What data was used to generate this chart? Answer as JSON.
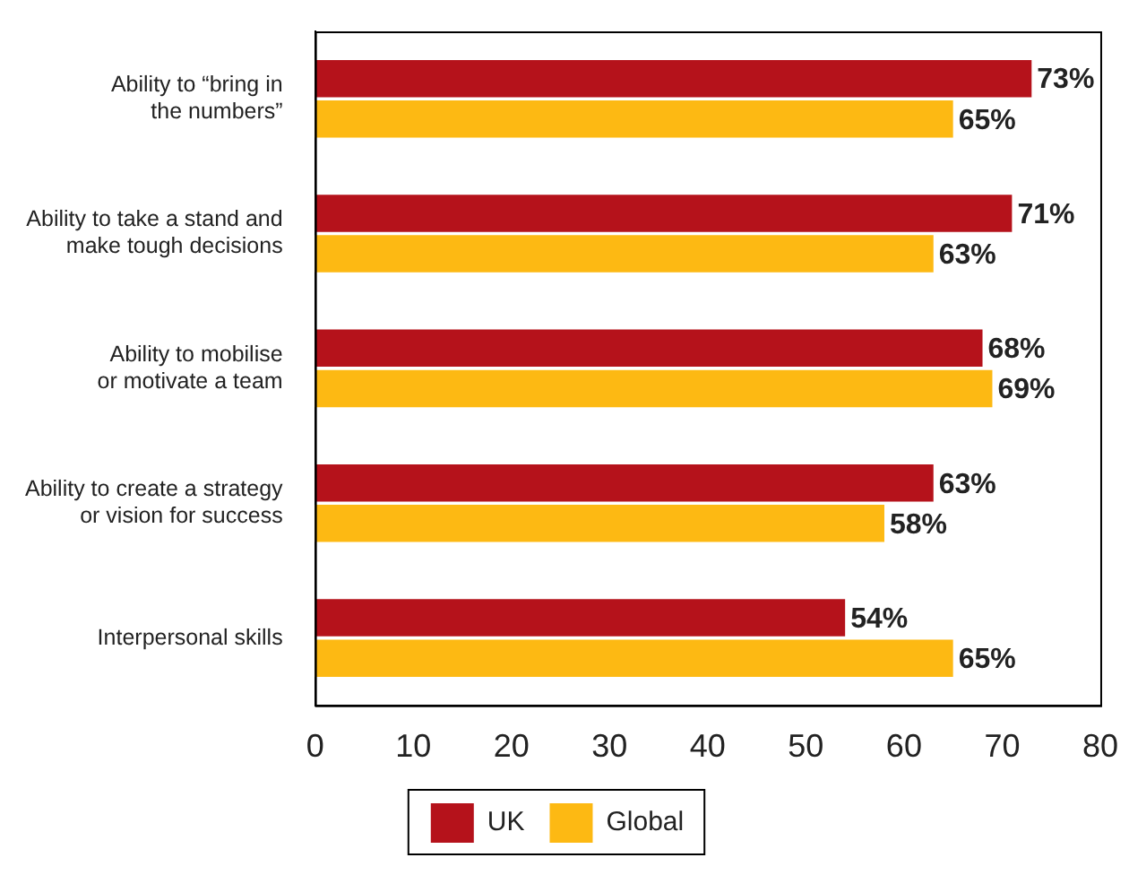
{
  "chart_data": {
    "type": "bar",
    "orientation": "horizontal",
    "categories": [
      "Ability to “bring in\nthe numbers”",
      "Ability to take a stand and\nmake tough decisions",
      "Ability to mobilise\nor motivate a team",
      "Ability to create a strategy\nor vision for success",
      "Interpersonal skills"
    ],
    "series": [
      {
        "name": "UK",
        "color": "#b5121b",
        "values": [
          73,
          71,
          68,
          63,
          54
        ],
        "value_labels": [
          "73%",
          "71%",
          "68%",
          "63%",
          "54%"
        ]
      },
      {
        "name": "Global",
        "color": "#fdb913",
        "values": [
          65,
          63,
          69,
          58,
          65
        ],
        "value_labels": [
          "65%",
          "63%",
          "69%",
          "58%",
          "65%"
        ]
      }
    ],
    "xlim": [
      0,
      80
    ],
    "xticks": [
      0,
      10,
      20,
      30,
      40,
      50,
      60,
      70,
      80
    ],
    "grid": false,
    "legend": "bottom"
  }
}
